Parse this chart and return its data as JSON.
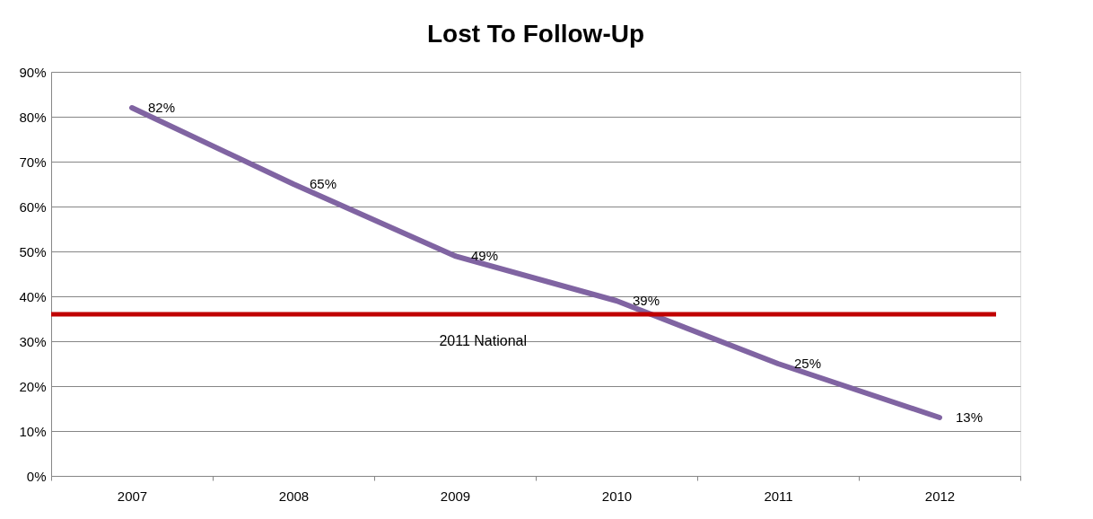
{
  "chart_data": {
    "type": "line",
    "title": "Lost To Follow-Up",
    "categories": [
      "2007",
      "2008",
      "2009",
      "2010",
      "2011",
      "2012"
    ],
    "series": [
      {
        "color": "#8064a2",
        "values": [
          82,
          65,
          49,
          39,
          25,
          13
        ],
        "value_labels": [
          "82%",
          "65%",
          "49%",
          "39%",
          "25%",
          "13%"
        ]
      }
    ],
    "ylim": [
      0,
      90
    ],
    "yticks": [
      {
        "value": 0,
        "label": "0%"
      },
      {
        "value": 10,
        "label": "10%"
      },
      {
        "value": 20,
        "label": "20%"
      },
      {
        "value": 30,
        "label": "30%"
      },
      {
        "value": 40,
        "label": "40%"
      },
      {
        "value": 50,
        "label": "50%"
      },
      {
        "value": 60,
        "label": "60%"
      },
      {
        "value": 70,
        "label": "70%"
      },
      {
        "value": 80,
        "label": "80%"
      },
      {
        "value": 90,
        "label": "90%"
      }
    ],
    "ref_lines": [
      {
        "axis": "y",
        "value": 36,
        "label": "2011 National",
        "color": "#c00000",
        "line_style": "solid"
      }
    ],
    "grid": "y",
    "marker": "none",
    "line_style": "solid"
  }
}
